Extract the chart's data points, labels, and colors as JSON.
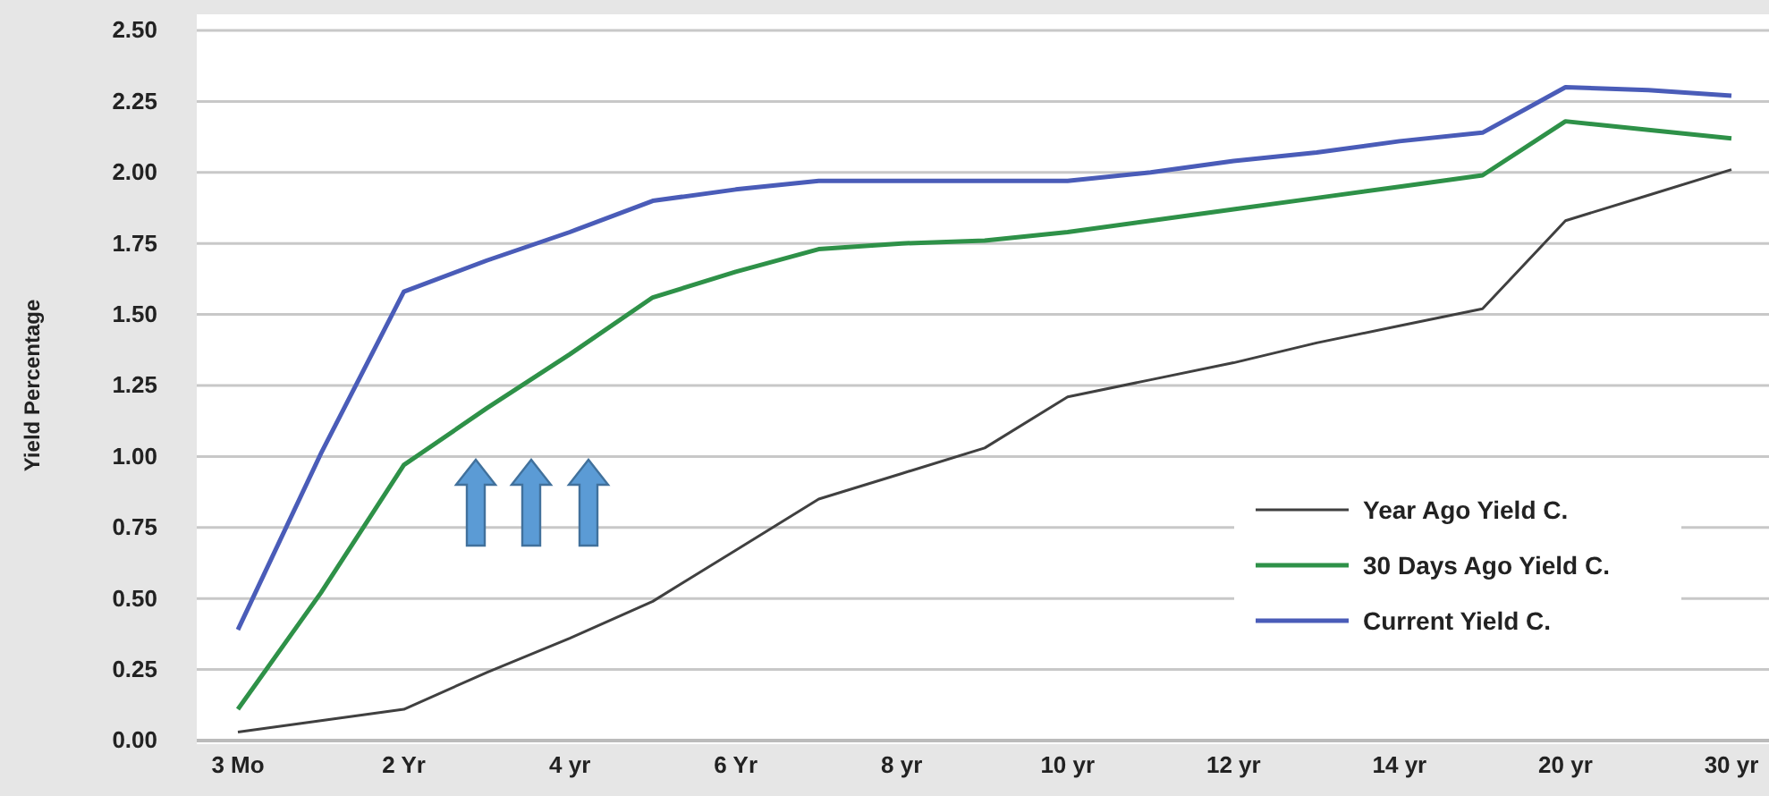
{
  "chart_data": {
    "type": "line",
    "ylabel": "Yield Percentage",
    "categories": [
      "3 Mo",
      null,
      "2 Yr",
      null,
      "4 yr",
      null,
      "6 Yr",
      null,
      "8 yr",
      null,
      "10 yr",
      null,
      "12 yr",
      null,
      "14 yr",
      null,
      "20 yr",
      null,
      "30 yr"
    ],
    "series": [
      {
        "name": "Year Ago Yield C.",
        "color": "#404040",
        "values": [
          0.03,
          0.07,
          0.11,
          0.24,
          0.36,
          0.49,
          0.67,
          0.85,
          0.94,
          1.03,
          1.21,
          1.27,
          1.33,
          1.4,
          1.46,
          1.52,
          1.83,
          1.92,
          2.01
        ]
      },
      {
        "name": "30 Days Ago Yield C.",
        "color": "#2e9148",
        "values": [
          0.11,
          0.52,
          0.97,
          1.17,
          1.36,
          1.56,
          1.65,
          1.73,
          1.75,
          1.76,
          1.79,
          1.83,
          1.87,
          1.91,
          1.95,
          1.99,
          2.18,
          2.15,
          2.12
        ]
      },
      {
        "name": "Current Yield C.",
        "color": "#4a5cb8",
        "values": [
          0.39,
          1.01,
          1.58,
          1.69,
          1.79,
          1.9,
          1.94,
          1.97,
          1.97,
          1.97,
          1.97,
          2.0,
          2.04,
          2.07,
          2.11,
          2.14,
          2.3,
          2.29,
          2.27
        ]
      }
    ],
    "ylim": [
      0,
      2.5
    ],
    "yticks": [
      {
        "value": 0,
        "label": "0.00"
      },
      {
        "value": 0.25,
        "label": "0.25"
      },
      {
        "value": 0.5,
        "label": "0.50"
      },
      {
        "value": 0.75,
        "label": "0.75"
      },
      {
        "value": 1,
        "label": "1.00"
      },
      {
        "value": 1.25,
        "label": "1.25"
      },
      {
        "value": 1.5,
        "label": "1.50"
      },
      {
        "value": 1.75,
        "label": "1.75"
      },
      {
        "value": 2,
        "label": "2.00"
      },
      {
        "value": 2.25,
        "label": "2.25"
      },
      {
        "value": 2.5,
        "label": "2.50"
      }
    ],
    "grid": "y",
    "legend": "bottom right",
    "marker": "none",
    "line_style": "solid"
  }
}
